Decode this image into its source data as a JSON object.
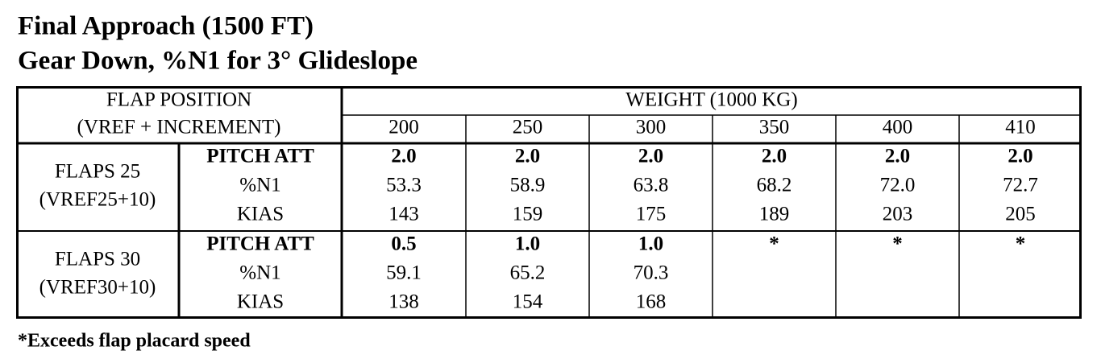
{
  "header": {
    "title": [
      "Final Approach (1500 FT)",
      "Gear Down, %N1 for 3° Glideslope"
    ]
  },
  "table": {
    "flap_header": [
      "FLAP POSITION",
      "(VREF + INCREMENT)"
    ],
    "weight_header": "WEIGHT (1000 KG)",
    "weights": [
      "200",
      "250",
      "300",
      "350",
      "400",
      "410"
    ],
    "groups": [
      {
        "label": [
          "FLAPS 25",
          "(VREF25+10)"
        ],
        "rows": [
          {
            "name": "PITCH ATT",
            "values": [
              "2.0",
              "2.0",
              "2.0",
              "2.0",
              "2.0",
              "2.0"
            ]
          },
          {
            "name": "%N1",
            "values": [
              "53.3",
              "58.9",
              "63.8",
              "68.2",
              "72.0",
              "72.7"
            ]
          },
          {
            "name": "KIAS",
            "values": [
              "143",
              "159",
              "175",
              "189",
              "203",
              "205"
            ]
          }
        ]
      },
      {
        "label": [
          "FLAPS 30",
          "(VREF30+10)"
        ],
        "rows": [
          {
            "name": "PITCH ATT",
            "values": [
              "0.5",
              "1.0",
              "1.0",
              "*",
              "*",
              "*"
            ]
          },
          {
            "name": "%N1",
            "values": [
              "59.1",
              "65.2",
              "70.3"
            ]
          },
          {
            "name": "KIAS",
            "values": [
              "138",
              "154",
              "168"
            ]
          }
        ]
      }
    ]
  },
  "footnote": "*Exceeds flap placard speed"
}
